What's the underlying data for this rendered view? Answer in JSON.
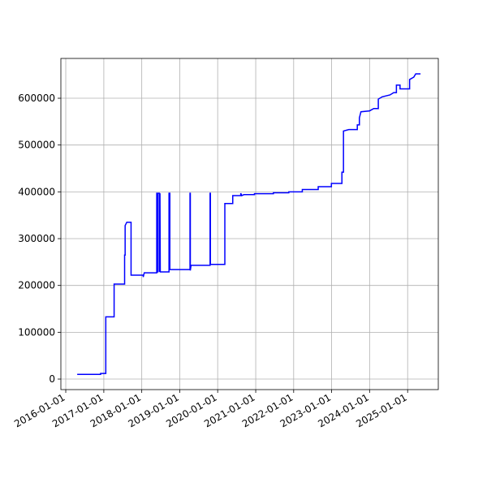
{
  "chart_data": {
    "type": "line",
    "grid": true,
    "xlim": [
      "2015-11-15",
      "2025-10-23"
    ],
    "xticks": [
      "2016-01-01",
      "2017-01-01",
      "2018-01-01",
      "2019-01-01",
      "2020-01-01",
      "2021-01-01",
      "2022-01-01",
      "2023-01-01",
      "2024-01-01",
      "2025-01-01"
    ],
    "ylim": [
      -22500,
      685000
    ],
    "yticks": [
      0,
      100000,
      200000,
      300000,
      400000,
      500000,
      600000
    ],
    "x": [
      "2016-04-20",
      "2016-12-01",
      "2016-12-01",
      "2017-01-20",
      "2017-01-20",
      "2017-04-10",
      "2017-04-10",
      "2017-07-20",
      "2017-07-20",
      "2017-07-25",
      "2017-07-25",
      "2017-08-10",
      "2017-09-20",
      "2017-09-20",
      "2018-01-15",
      "2018-01-15",
      "2018-01-25",
      "2018-05-25",
      "2018-05-25",
      "2018-05-28",
      "2018-05-28",
      "2018-06-05",
      "2018-06-05",
      "2018-06-20",
      "2018-06-20",
      "2018-06-25",
      "2018-06-28",
      "2018-09-20",
      "2018-09-20",
      "2018-09-28",
      "2018-09-28",
      "2019-04-10",
      "2019-04-10",
      "2019-04-13",
      "2019-04-13",
      "2019-04-20",
      "2019-10-20",
      "2019-10-20",
      "2019-10-23",
      "2019-10-23",
      "2020-03-10",
      "2020-03-10",
      "2020-05-25",
      "2020-05-25",
      "2020-08-10",
      "2020-08-10",
      "2020-08-20",
      "2020-09-10",
      "2020-12-20",
      "2020-12-20",
      "2021-06-20",
      "2021-06-20",
      "2021-11-15",
      "2021-11-15",
      "2022-03-25",
      "2022-03-25",
      "2022-08-25",
      "2022-08-25",
      "2022-12-30",
      "2022-12-30",
      "2023-04-10",
      "2023-04-10",
      "2023-04-25",
      "2023-04-25",
      "2023-06-15",
      "2023-09-05",
      "2023-09-05",
      "2023-09-25",
      "2023-09-25",
      "2023-10-10",
      "2024-01-01",
      "2024-02-10",
      "2024-03-25",
      "2024-03-25",
      "2024-05-01",
      "2024-07-15",
      "2024-08-20",
      "2024-09-15",
      "2024-09-15",
      "2024-10-20",
      "2024-10-20",
      "2025-01-20",
      "2025-01-20",
      "2025-03-01",
      "2025-03-20",
      "2025-05-05"
    ],
    "series": [
      {
        "color": "#0000ff",
        "values": [
          10000,
          10000,
          12000,
          12000,
          133000,
          133000,
          203000,
          203000,
          265000,
          265000,
          328000,
          335000,
          335000,
          222000,
          222000,
          218000,
          227000,
          227000,
          397000,
          397000,
          229000,
          229000,
          397000,
          397000,
          229000,
          397000,
          229000,
          229000,
          397000,
          397000,
          234000,
          234000,
          397000,
          397000,
          232000,
          243000,
          243000,
          397000,
          397000,
          245000,
          245000,
          375000,
          375000,
          392000,
          392000,
          397000,
          392000,
          394000,
          394000,
          396000,
          396000,
          398000,
          398000,
          400000,
          400000,
          405000,
          405000,
          411000,
          411000,
          418000,
          418000,
          442000,
          442000,
          530000,
          533000,
          533000,
          543000,
          543000,
          558000,
          571000,
          573000,
          578000,
          578000,
          598000,
          603000,
          607000,
          612000,
          612000,
          628000,
          628000,
          620000,
          620000,
          640000,
          645000,
          652000,
          652000
        ]
      }
    ]
  }
}
